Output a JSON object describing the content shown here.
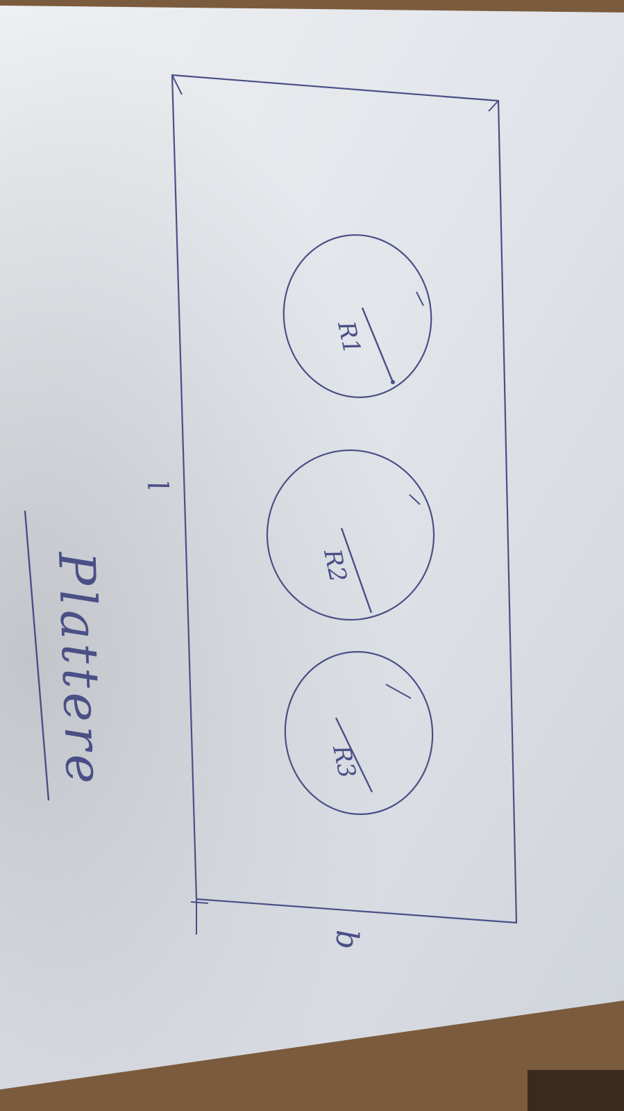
{
  "labels": {
    "length": "l",
    "width": "b",
    "title": "Plattere",
    "radius_1": "R1",
    "radius_2": "R2",
    "radius_3": "R3"
  },
  "colors": {
    "ink": "#4a4f86",
    "paper": "#e4e6ea",
    "desk": "#7a5a3c"
  }
}
